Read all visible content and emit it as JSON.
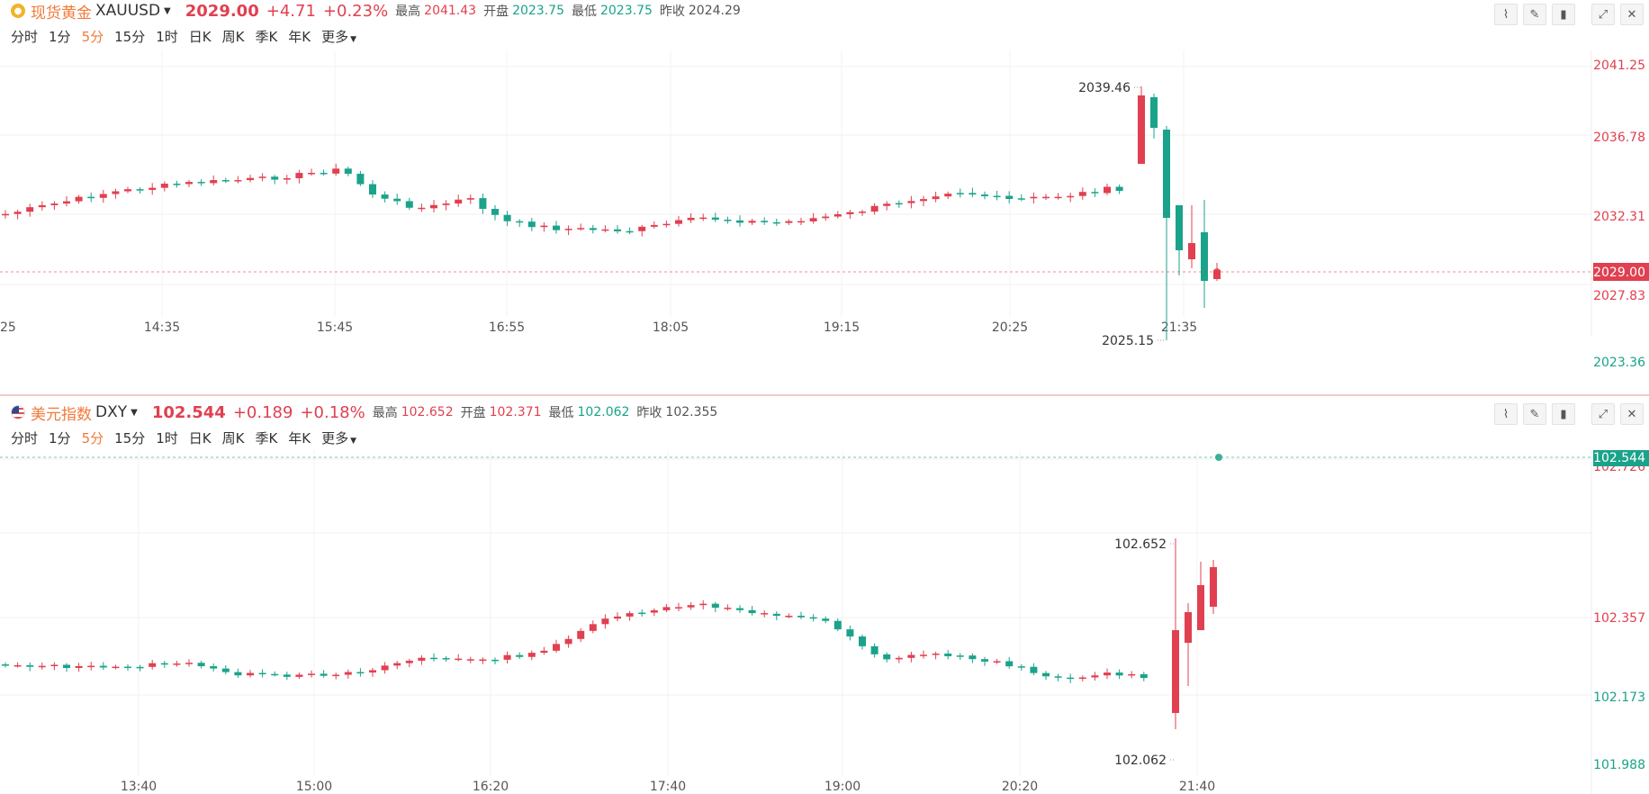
{
  "top": {
    "name": "现货黄金",
    "code": "XAUUSD",
    "price": "2029.00",
    "change": "+4.71",
    "change_pct": "+0.23%",
    "stats": [
      {
        "label": "最高",
        "value": "2041.43",
        "tone": "red"
      },
      {
        "label": "开盘",
        "value": "2023.75",
        "tone": "green"
      },
      {
        "label": "最低",
        "value": "2023.75",
        "tone": "green"
      },
      {
        "label": "昨收",
        "value": "2024.29",
        "tone": "neutral"
      }
    ],
    "periods": [
      "分时",
      "1分",
      "5分",
      "15分",
      "1时",
      "日K",
      "周K",
      "季K",
      "年K",
      "更多"
    ],
    "active_period": "5分",
    "y_ticks": [
      "2041.25",
      "2036.78",
      "2032.31",
      "2027.83",
      "2023.36"
    ],
    "current_price_tag": "2029.00",
    "x_ticks": [
      "14:35",
      "15:45",
      "16:55",
      "18:05",
      "19:15",
      "20:25",
      "21:35"
    ],
    "x_edge_tick": "25",
    "hi_marker": "2039.46",
    "lo_marker": "2025.15",
    "colors": {
      "up": "#e04050",
      "down": "#1aa38a",
      "tag_bg": "#e04050"
    }
  },
  "bottom": {
    "name": "美元指数",
    "code": "DXY",
    "price": "102.544",
    "change": "+0.189",
    "change_pct": "+0.18%",
    "stats": [
      {
        "label": "最高",
        "value": "102.652",
        "tone": "red"
      },
      {
        "label": "开盘",
        "value": "102.371",
        "tone": "red"
      },
      {
        "label": "最低",
        "value": "102.062",
        "tone": "green"
      },
      {
        "label": "昨收",
        "value": "102.355",
        "tone": "neutral"
      }
    ],
    "periods": [
      "分时",
      "1分",
      "5分",
      "15分",
      "1时",
      "日K",
      "周K",
      "季K",
      "年K",
      "更多"
    ],
    "active_period": "5分",
    "y_ticks": [
      "102.726",
      "102.357",
      "102.173",
      "101.988"
    ],
    "current_price_tag": "102.544",
    "x_ticks": [
      "13:40",
      "15:00",
      "16:20",
      "17:40",
      "19:00",
      "20:20",
      "21:40"
    ],
    "hi_marker": "102.652",
    "lo_marker": "102.062",
    "colors": {
      "up": "#e04050",
      "down": "#1aa38a",
      "tag_bg": "#1aa38a"
    }
  },
  "tools": [
    "line-tool-icon",
    "draw-tool-icon",
    "candle-type-icon",
    "expand-icon",
    "close-icon"
  ]
}
